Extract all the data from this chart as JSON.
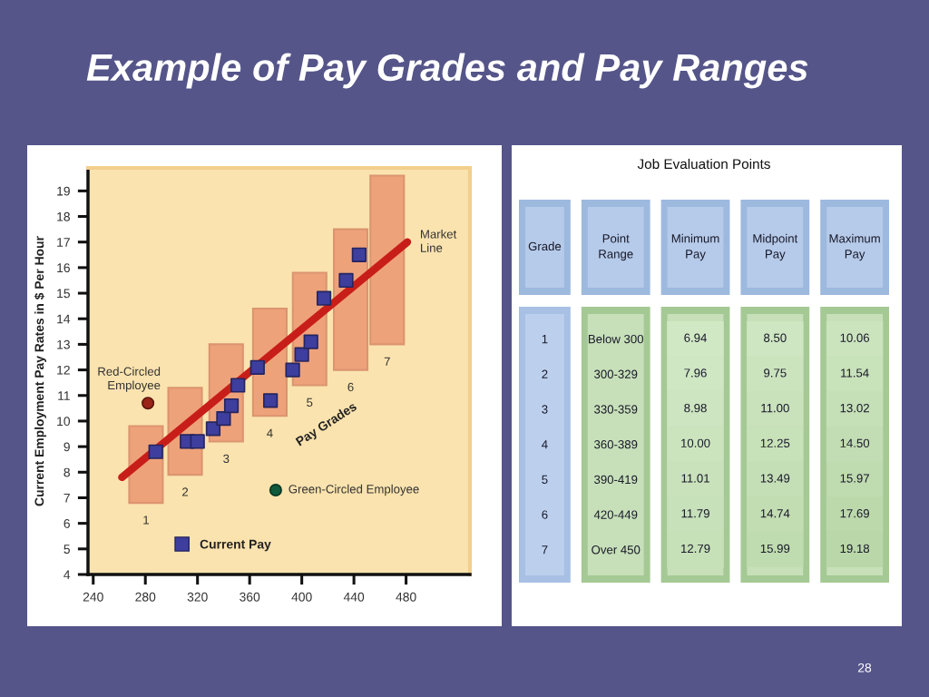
{
  "chart_data": [
    {
      "type": "bar",
      "title": "Example of Pay Grades and Pay Ranges",
      "ylabel": "Current Employment Pay Rates in $ Per Hour",
      "xlim": [
        236,
        529
      ],
      "ylim": [
        4,
        19.9
      ],
      "xticks": [
        240,
        280,
        320,
        360,
        400,
        440,
        480
      ],
      "yticks": [
        4,
        5,
        6,
        7,
        8,
        9,
        10,
        11,
        12,
        13,
        14,
        15,
        16,
        17,
        18,
        19
      ],
      "legend": "bottom left",
      "series": [
        {
          "type": "bar",
          "x": [
            280.5,
            310.5,
            342,
            375.5,
            406,
            437.5,
            465.5
          ],
          "base": [
            6.8,
            7.9,
            9.2,
            10.2,
            11.4,
            12.0,
            13.0
          ],
          "values": [
            3.0,
            3.4,
            3.8,
            4.2,
            4.4,
            5.5,
            6.6
          ],
          "color": "#eea27a"
        },
        {
          "type": "line",
          "x": [
            262,
            481
          ],
          "values": [
            7.8,
            17.0
          ],
          "color": "#c81e1a",
          "marker": "none",
          "line_style": "solid"
        },
        {
          "type": "scatter",
          "name": "Current Pay",
          "x": [
            288,
            312,
            320,
            332,
            340,
            346,
            351,
            366,
            376,
            393,
            400,
            407,
            417,
            434,
            444
          ],
          "values": [
            8.8,
            9.2,
            9.2,
            9.7,
            10.1,
            10.6,
            11.4,
            12.1,
            10.8,
            12.0,
            12.6,
            13.1,
            14.8,
            15.5,
            16.5
          ],
          "color": "#3e3e9e",
          "marker": "square"
        },
        {
          "type": "scatter",
          "x": [
            282
          ],
          "values": [
            10.7
          ],
          "color": "#9a2418",
          "marker": "circle"
        },
        {
          "type": "scatter",
          "x": [
            380
          ],
          "values": [
            7.3
          ],
          "color": "#0f5a3c",
          "marker": "circle"
        }
      ],
      "annotations": [
        "Pay Grades",
        {
          "text": "Red-Circled\nEmployee",
          "x": 282,
          "y": 10.7
        },
        {
          "text": "Green-Circled Employee",
          "x": 380,
          "y": 7.3
        },
        {
          "text": "Market\nLine",
          "x": 481,
          "y": 17.0
        },
        {
          "text": "1",
          "x": 280.5,
          "y": 6.8
        },
        {
          "text": "2",
          "x": 310.5,
          "y": 7.9
        },
        {
          "text": "3",
          "x": 342,
          "y": 9.2
        },
        {
          "text": "4",
          "x": 375.5,
          "y": 10.2
        },
        {
          "text": "5",
          "x": 406,
          "y": 11.4
        },
        {
          "text": "6",
          "x": 437.5,
          "y": 12.0
        },
        {
          "text": "7",
          "x": 465.5,
          "y": 13.0
        }
      ]
    },
    {
      "type": "heatmap",
      "title": "Job Evaluation Points",
      "ylabel": "Point\nRange",
      "y2label": "Grade",
      "categories": [
        "Minimum\nPay",
        "Midpoint\nPay",
        "Maximum\nPay"
      ],
      "y_categories": [
        "Below 300",
        "300-329",
        "330-359",
        "360-389",
        "390-419",
        "420-449",
        "Over 450"
      ],
      "y2_categories": [
        "1",
        "2",
        "3",
        "4",
        "5",
        "6",
        "7"
      ],
      "cells": [
        [
          6.94,
          8.5,
          10.06
        ],
        [
          7.96,
          9.75,
          11.54
        ],
        [
          8.98,
          11.0,
          13.02
        ],
        [
          10.0,
          12.25,
          14.5
        ],
        [
          11.01,
          13.49,
          15.97
        ],
        [
          11.79,
          14.74,
          17.69
        ],
        [
          12.79,
          15.99,
          19.18
        ]
      ],
      "cell_labels": [
        [
          "6.94",
          "8.50",
          "10.06"
        ],
        [
          "7.96",
          "9.75",
          "11.54"
        ],
        [
          "8.98",
          "11.00",
          "13.02"
        ],
        [
          "10.00",
          "12.25",
          "14.50"
        ],
        [
          "11.01",
          "13.49",
          "15.97"
        ],
        [
          "11.79",
          "14.74",
          "17.69"
        ],
        [
          "12.79",
          "15.99",
          "19.18"
        ]
      ],
      "annotations": [
        "28"
      ]
    }
  ]
}
